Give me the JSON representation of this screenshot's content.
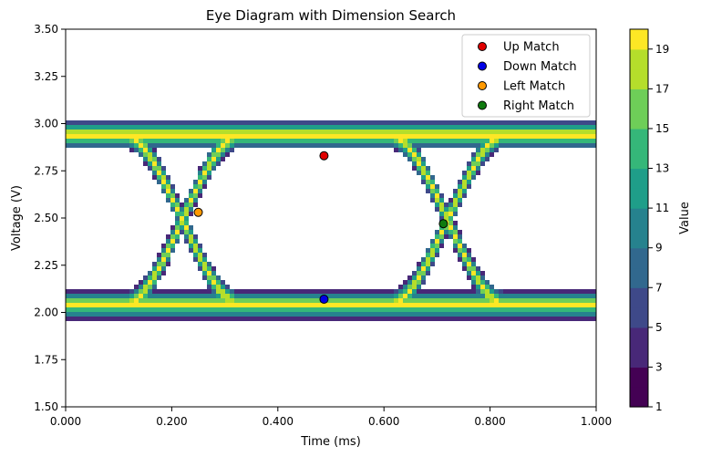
{
  "chart_data": {
    "type": "heatmap",
    "title": "Eye Diagram with Dimension Search",
    "xlabel": "Time (ms)",
    "ylabel": "Voltage (V)",
    "xlim": [
      0.0,
      1.0
    ],
    "ylim": [
      1.5,
      3.5
    ],
    "x_ticks": [
      0.0,
      0.2,
      0.4,
      0.6,
      0.8,
      1.0
    ],
    "x_tick_labels": [
      "0.000",
      "0.200",
      "0.400",
      "0.600",
      "0.800",
      "1.000"
    ],
    "y_ticks": [
      1.5,
      1.75,
      2.0,
      2.25,
      2.5,
      2.75,
      3.0,
      3.25,
      3.5
    ],
    "y_tick_labels": [
      "1.50",
      "1.75",
      "2.00",
      "2.25",
      "2.50",
      "2.75",
      "3.00",
      "3.25",
      "3.50"
    ],
    "grid": false,
    "colorbar": {
      "label": "Value",
      "range": [
        1,
        20
      ],
      "ticks": [
        1,
        3,
        5,
        7,
        9,
        11,
        13,
        15,
        17,
        19
      ],
      "tick_labels": [
        "1",
        "3",
        "5",
        "7",
        "9",
        "11",
        "13",
        "15",
        "17",
        "19"
      ],
      "colormap": [
        "#440154",
        "#482878",
        "#3e4989",
        "#31688e",
        "#26828e",
        "#1f9e89",
        "#35b779",
        "#6ece58",
        "#b5de2b",
        "#fde725"
      ]
    },
    "eye": {
      "high_level": 2.94,
      "low_level": 2.04,
      "crossings_ms": [
        0.22,
        0.72
      ],
      "crossing_voltage": 2.49
    },
    "points": [
      {
        "name": "Up Match",
        "x": 0.487,
        "y": 2.83,
        "color": "#e00000"
      },
      {
        "name": "Down Match",
        "x": 0.487,
        "y": 2.07,
        "color": "#0000e6"
      },
      {
        "name": "Left Match",
        "x": 0.25,
        "y": 2.53,
        "color": "#ff9900"
      },
      {
        "name": "Right Match",
        "x": 0.712,
        "y": 2.47,
        "color": "#0f7a0f"
      }
    ],
    "legend_position": "top-right"
  }
}
